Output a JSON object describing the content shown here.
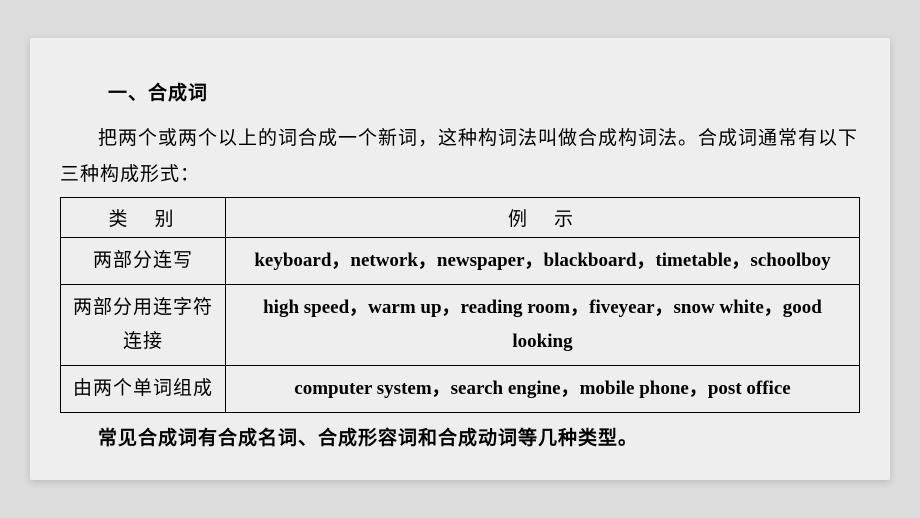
{
  "document": {
    "heading": "一、合成词",
    "intro": "把两个或两个以上的词合成一个新词，这种构词法叫做合成构词法。合成词通常有以下三种构成形式：",
    "table": {
      "header": {
        "category": "类　别",
        "example": "例　示"
      },
      "rows": [
        {
          "label": "两部分连写",
          "example": "keyboard，network，newspaper，blackboard，timetable，schoolboy"
        },
        {
          "label": "两部分用连字符连接",
          "example": "high speed，warm up，reading room，fiveyear，snow white，good looking"
        },
        {
          "label": "由两个单词组成",
          "example": "computer system，search engine，mobile phone，post office"
        }
      ]
    },
    "footer": "常见合成词有合成名词、合成形容词和合成动词等几种类型。",
    "colors": {
      "page_bg": "#eeeeee",
      "outer_bg": "#dcdcdc",
      "text": "#000000",
      "border": "#000000"
    },
    "typography": {
      "chinese_font": "SimSun",
      "english_font": "Times New Roman",
      "base_fontsize": 19
    }
  }
}
